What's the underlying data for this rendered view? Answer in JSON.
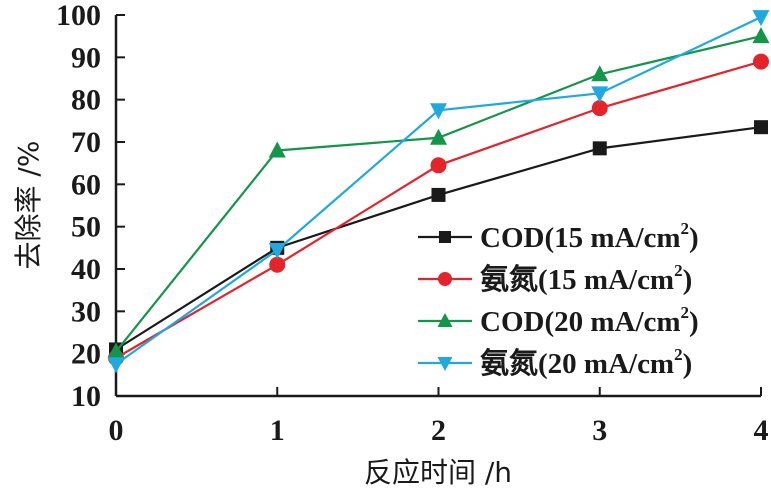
{
  "chart_data": {
    "type": "line",
    "title": "",
    "xlabel": "反应时间 /h",
    "ylabel": "去除率 /%",
    "x": [
      0,
      1,
      2,
      3,
      4
    ],
    "xticks": [
      "0",
      "1",
      "2",
      "3",
      "4"
    ],
    "yticks": [
      "10",
      "20",
      "30",
      "40",
      "50",
      "60",
      "70",
      "80",
      "90",
      "100"
    ],
    "xlim": [
      0,
      4
    ],
    "ylim": [
      10,
      100
    ],
    "grid": false,
    "legend_position": "right",
    "series": [
      {
        "name": "COD(15 mA/cm2)",
        "label_main": "COD(15 mA/cm",
        "label_sup": "2",
        "label_end": ")",
        "color": "#1a1a1a",
        "marker": "square",
        "values": [
          21,
          45,
          57.5,
          68.5,
          73.5
        ]
      },
      {
        "name": "氨氮(15 mA/cm2)",
        "label_main": "氨氮(15 mA/cm",
        "label_sup": "2",
        "label_end": ")",
        "color": "#e5232b",
        "marker": "circle",
        "values": [
          19,
          41,
          64.5,
          78,
          89
        ]
      },
      {
        "name": "COD(20 mA/cm2)",
        "label_main": "COD(20 mA/cm",
        "label_sup": "2",
        "label_end": ")",
        "color": "#14964a",
        "marker": "triangle-up",
        "values": [
          20.5,
          68,
          71,
          86,
          95
        ]
      },
      {
        "name": "氨氮(20 mA/cm2)",
        "label_main": "氨氮(20 mA/cm",
        "label_sup": "2",
        "label_end": ")",
        "color": "#1ea9e1",
        "marker": "triangle-down",
        "values": [
          17.5,
          44.5,
          77.5,
          81.5,
          99.5
        ]
      }
    ]
  }
}
